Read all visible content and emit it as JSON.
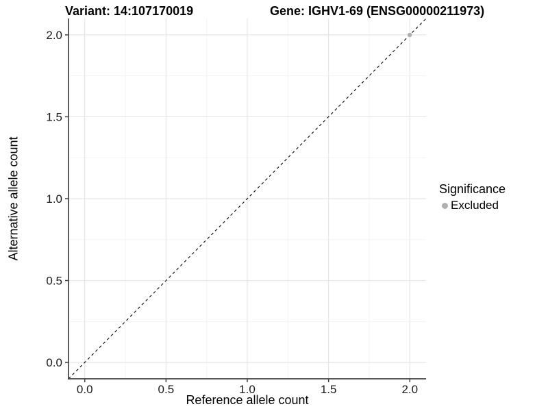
{
  "header": {
    "variant_title": "Variant: 14:107170019",
    "gene_title": "Gene: IGHV1-69 (ENSG00000211973)"
  },
  "axes": {
    "x_label": "Reference allele count",
    "y_label": "Alternative allele count"
  },
  "legend": {
    "title": "Significance",
    "items": [
      {
        "label": "Excluded",
        "color": "#b0b0b0"
      }
    ]
  },
  "colors": {
    "grid_major": "#e6e6e6",
    "grid_minor": "#f3f3f3",
    "axis_line": "#404040",
    "tick_text": "#1a1a1a",
    "reference_line": "#000000",
    "point_excluded": "#b0b0b0"
  },
  "chart_data": {
    "type": "scatter",
    "titles": [
      "Variant: 14:107170019",
      "Gene: IGHV1-69 (ENSG00000211973)"
    ],
    "xlabel": "Reference allele count",
    "ylabel": "Alternative allele count",
    "xlim": [
      -0.1,
      2.1
    ],
    "ylim": [
      -0.1,
      2.1
    ],
    "x_ticks": [
      0.0,
      0.5,
      1.0,
      1.5,
      2.0
    ],
    "x_tick_labels": [
      "0.0",
      "0.5",
      "1.0",
      "1.5",
      "2.0"
    ],
    "y_ticks": [
      0.0,
      0.5,
      1.0,
      1.5,
      2.0
    ],
    "y_tick_labels": [
      "0.0",
      "0.5",
      "1.0",
      "1.5",
      "2.0"
    ],
    "minor_breaks": [
      0.25,
      0.75,
      1.25,
      1.75
    ],
    "grid": true,
    "legend_position": "right-center",
    "reference_line": {
      "slope": 1,
      "intercept": 0,
      "style": "dashed",
      "color": "#000000"
    },
    "series": [
      {
        "name": "Excluded",
        "color": "#b0b0b0",
        "points": [
          {
            "x": 2.0,
            "y": 2.0
          }
        ]
      }
    ]
  }
}
